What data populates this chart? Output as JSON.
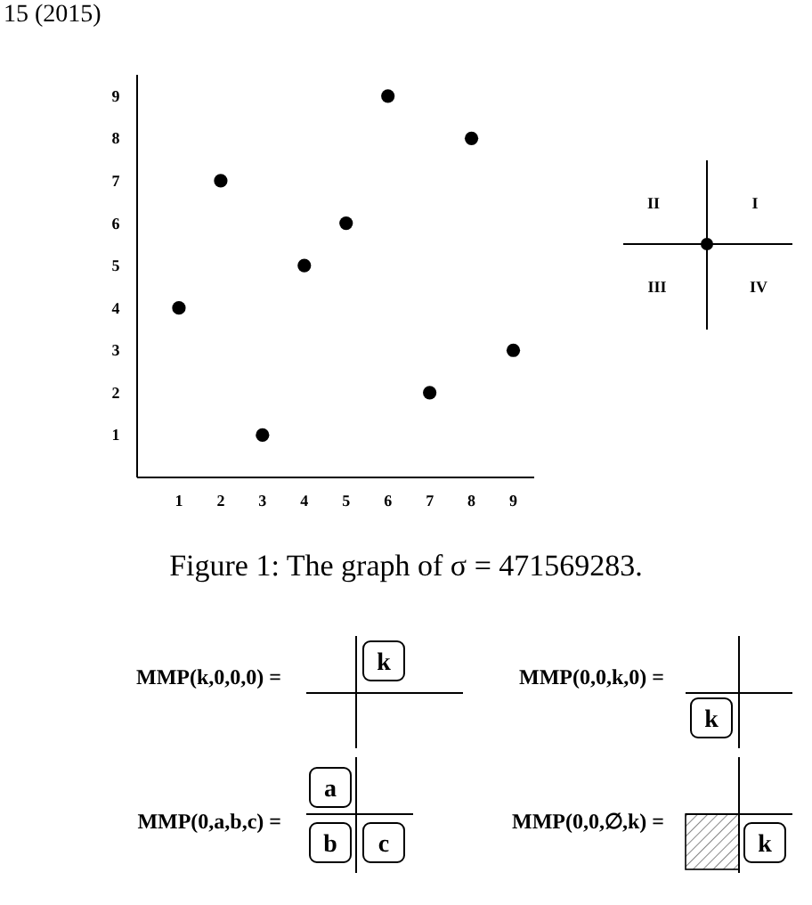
{
  "chart_data": {
    "type": "scatter",
    "x": [
      1,
      2,
      3,
      4,
      5,
      6,
      7,
      8,
      9
    ],
    "values": [
      4,
      7,
      1,
      5,
      6,
      9,
      2,
      8,
      3
    ],
    "color": "#000000",
    "marker": "circle",
    "grid": false,
    "xlim": [
      0,
      9.5
    ],
    "ylim": [
      0,
      9.5
    ],
    "xticks": [
      1,
      2,
      3,
      4,
      5,
      6,
      7,
      8,
      9
    ],
    "yticks": [
      1,
      2,
      3,
      4,
      5,
      6,
      7,
      8,
      9
    ],
    "annotations": [
      "15 (2015)",
      "II",
      "I",
      "III",
      "IV",
      "Figure 1: The graph of σ = 471569283.",
      "MMP(k,0,0,0) =",
      "MMP(0,0,k,0) =",
      "MMP(0,a,b,c) =",
      "MMP(0,0,∅,k) =",
      "k",
      "k",
      "a",
      "b",
      "c",
      "k"
    ]
  }
}
